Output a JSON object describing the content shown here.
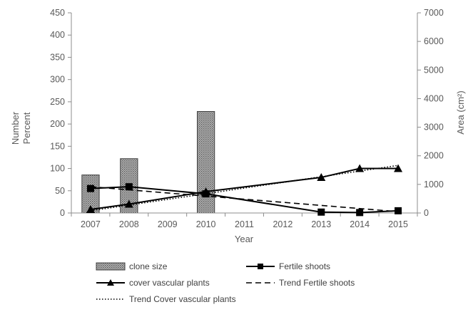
{
  "chart_data": {
    "type": "bar",
    "categories": [
      "2007",
      "2008",
      "2009",
      "2010",
      "2011",
      "2012",
      "2013",
      "2014",
      "2015"
    ],
    "xlabel": "Year",
    "ylabel_lines": [
      "Number",
      "Percent"
    ],
    "y2label": "Area (cm²)",
    "ylim": [
      0,
      450
    ],
    "y_ticks": [
      0,
      50,
      100,
      150,
      200,
      250,
      300,
      350,
      400,
      450
    ],
    "y2lim": [
      0,
      7000
    ],
    "y2_ticks": [
      0,
      1000,
      2000,
      3000,
      4000,
      5000,
      6000,
      7000
    ],
    "grid": false,
    "legend_position": "bottom",
    "series": [
      {
        "name": "clone size",
        "type": "bar",
        "axis": "right",
        "values": [
          1330,
          1900,
          null,
          3550,
          null,
          null,
          null,
          null,
          null
        ],
        "color": "#9e9e9e"
      },
      {
        "name": "Fertile shoots",
        "type": "line",
        "axis": "left",
        "marker": "square",
        "values": [
          55,
          59,
          null,
          43,
          null,
          null,
          2,
          1,
          5
        ],
        "color": "#000000"
      },
      {
        "name": "cover vascular plants",
        "type": "line",
        "axis": "left",
        "marker": "triangle",
        "values": [
          8,
          20,
          null,
          48,
          null,
          null,
          80,
          100,
          100
        ],
        "color": "#000000"
      },
      {
        "name": "Trend Fertile shoots",
        "type": "trend",
        "axis": "left",
        "dash": "dashed",
        "from": [
          0,
          59
        ],
        "to": [
          8,
          3
        ],
        "color": "#000000"
      },
      {
        "name": "Trend Cover vascular plants",
        "type": "trend",
        "axis": "left",
        "dash": "dotted",
        "from": [
          0,
          5
        ],
        "to": [
          8,
          107
        ],
        "color": "#000000"
      }
    ]
  }
}
